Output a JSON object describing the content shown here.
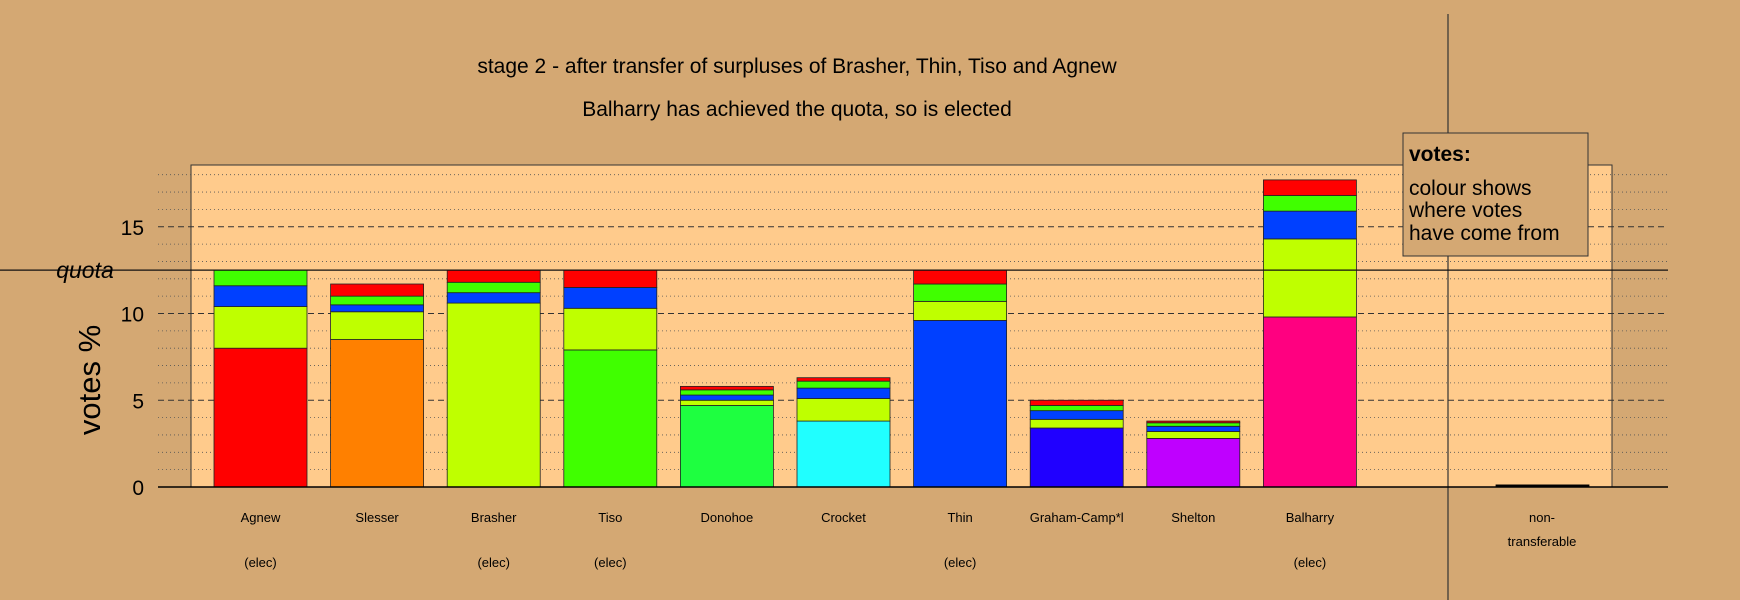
{
  "chart_data": {
    "type": "bar",
    "stacked": true,
    "title": "stage 2 - after transfer of surpluses of Brasher, Thin, Tiso and Agnew",
    "subtitle": "Balharry has achieved the quota, so is elected",
    "ylabel": "votes %",
    "ylim": [
      0,
      18
    ],
    "yticks": [
      0,
      5,
      10,
      15
    ],
    "quota": 12.5,
    "quota_label": "quota",
    "grid": true,
    "legend": {
      "placement": "top-right",
      "title": "votes:",
      "lines": [
        "colour shows",
        "where votes",
        "have come from"
      ]
    },
    "colors": {
      "Agnew": "#FF0000",
      "Slesser": "#FF8000",
      "Brasher": "#BFFF00",
      "Tiso": "#40FF00",
      "Donohoe": "#1EFF40",
      "Crocket": "#20FFFF",
      "Thin": "#0040FF",
      "Graham-Camp*l": "#2000FF",
      "Shelton": "#BF00FF",
      "Balharry": "#FF0080",
      "non-transferable": "#000000"
    },
    "bars": [
      {
        "name": "Agnew",
        "note": "(elec)",
        "segments": [
          {
            "source": "Agnew",
            "value": 8.0
          },
          {
            "source": "Brasher",
            "value": 2.4
          },
          {
            "source": "Thin",
            "value": 1.2
          },
          {
            "source": "Tiso",
            "value": 0.9
          }
        ]
      },
      {
        "name": "Slesser",
        "note": "",
        "segments": [
          {
            "source": "Slesser",
            "value": 8.5
          },
          {
            "source": "Brasher",
            "value": 1.6
          },
          {
            "source": "Thin",
            "value": 0.4
          },
          {
            "source": "Tiso",
            "value": 0.5
          },
          {
            "source": "Agnew",
            "value": 0.7
          }
        ]
      },
      {
        "name": "Brasher",
        "note": "(elec)",
        "segments": [
          {
            "source": "Brasher",
            "value": 10.6
          },
          {
            "source": "Thin",
            "value": 0.6
          },
          {
            "source": "Tiso",
            "value": 0.6
          },
          {
            "source": "Agnew",
            "value": 0.7
          }
        ]
      },
      {
        "name": "Tiso",
        "note": "(elec)",
        "segments": [
          {
            "source": "Tiso",
            "value": 7.9
          },
          {
            "source": "Brasher",
            "value": 2.4
          },
          {
            "source": "Thin",
            "value": 1.2
          },
          {
            "source": "Agnew",
            "value": 1.0
          }
        ]
      },
      {
        "name": "Donohoe",
        "note": "",
        "segments": [
          {
            "source": "Donohoe",
            "value": 4.7
          },
          {
            "source": "Brasher",
            "value": 0.3
          },
          {
            "source": "Thin",
            "value": 0.3
          },
          {
            "source": "Tiso",
            "value": 0.3
          },
          {
            "source": "Agnew",
            "value": 0.2
          }
        ]
      },
      {
        "name": "Crocket",
        "note": "",
        "segments": [
          {
            "source": "Crocket",
            "value": 3.8
          },
          {
            "source": "Brasher",
            "value": 1.3
          },
          {
            "source": "Thin",
            "value": 0.6
          },
          {
            "source": "Tiso",
            "value": 0.4
          },
          {
            "source": "Agnew",
            "value": 0.2
          }
        ]
      },
      {
        "name": "Thin",
        "note": "(elec)",
        "segments": [
          {
            "source": "Thin",
            "value": 9.6
          },
          {
            "source": "Brasher",
            "value": 1.1
          },
          {
            "source": "Tiso",
            "value": 1.0
          },
          {
            "source": "Agnew",
            "value": 0.8
          }
        ]
      },
      {
        "name": "Graham-Camp*l",
        "note": "",
        "segments": [
          {
            "source": "Graham-Camp*l",
            "value": 3.4
          },
          {
            "source": "Brasher",
            "value": 0.5
          },
          {
            "source": "Thin",
            "value": 0.5
          },
          {
            "source": "Tiso",
            "value": 0.3
          },
          {
            "source": "Agnew",
            "value": 0.3
          }
        ]
      },
      {
        "name": "Shelton",
        "note": "",
        "segments": [
          {
            "source": "Shelton",
            "value": 2.8
          },
          {
            "source": "Brasher",
            "value": 0.4
          },
          {
            "source": "Thin",
            "value": 0.3
          },
          {
            "source": "Tiso",
            "value": 0.2
          },
          {
            "source": "Agnew",
            "value": 0.1
          }
        ]
      },
      {
        "name": "Balharry",
        "note": "(elec)",
        "segments": [
          {
            "source": "Balharry",
            "value": 9.8
          },
          {
            "source": "Brasher",
            "value": 4.5
          },
          {
            "source": "Thin",
            "value": 1.6
          },
          {
            "source": "Tiso",
            "value": 0.9
          },
          {
            "source": "Agnew",
            "value": 0.9
          }
        ]
      }
    ],
    "nontransferable": {
      "label_lines": [
        "non-",
        "transferable"
      ],
      "value": 0.12
    }
  }
}
